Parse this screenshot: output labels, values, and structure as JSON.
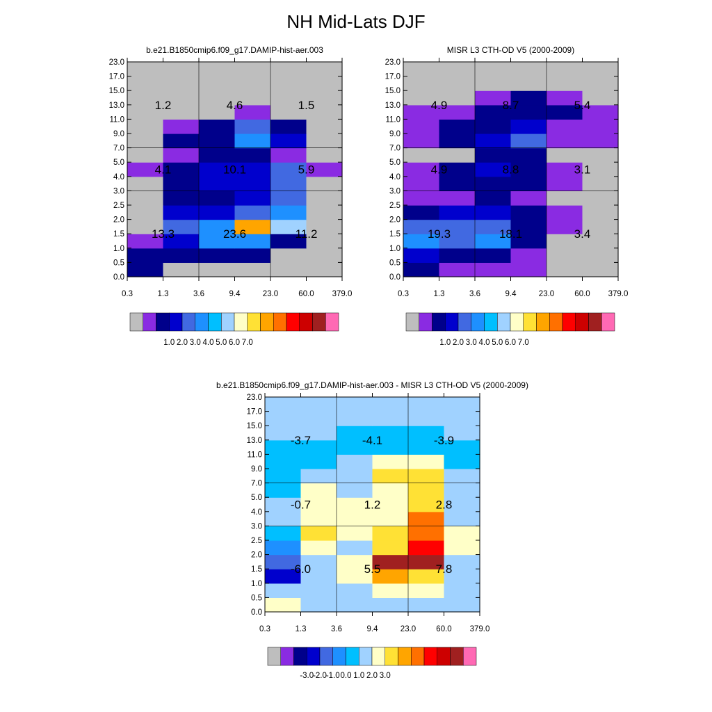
{
  "title": "NH Mid-Lats DJF",
  "palette": {
    "missing": "#bebebe",
    "colors": [
      "#8a2be2",
      "#00008b",
      "#0000cd",
      "#4169e1",
      "#1e90ff",
      "#00bfff",
      "#a0d2ff",
      "#ffffc8",
      "#ffe135",
      "#ffa500",
      "#ff7000",
      "#ff0000",
      "#cd0000",
      "#a02020",
      "#ff69b4"
    ]
  },
  "chart_data": [
    {
      "type": "heatmap",
      "title": "b.e21.B1850cmip6.f09_g17.DAMIP-hist-aer.003",
      "x_edges": [
        "0.3",
        "1.3",
        "3.6",
        "9.4",
        "23.0",
        "60.0",
        "379.0"
      ],
      "y_edges": [
        "0.0",
        "0.5",
        "1.0",
        "1.5",
        "2.0",
        "2.5",
        "3.0",
        "4.0",
        "5.0",
        "7.0",
        "9.0",
        "11.0",
        "13.0",
        "15.0",
        "17.0",
        "23.0"
      ],
      "cells": [
        [
          1,
          -1,
          -1,
          -1,
          -1,
          -1
        ],
        [
          1,
          1,
          1,
          1,
          -1,
          -1
        ],
        [
          0,
          2,
          4,
          4,
          1,
          -1
        ],
        [
          -1,
          3,
          4,
          9,
          6,
          -1
        ],
        [
          -1,
          2,
          2,
          3,
          4,
          -1
        ],
        [
          -1,
          1,
          1,
          2,
          3,
          -1
        ],
        [
          -1,
          1,
          2,
          2,
          3,
          -1
        ],
        [
          0,
          1,
          2,
          2,
          3,
          0
        ],
        [
          -1,
          0,
          1,
          1,
          0,
          -1
        ],
        [
          -1,
          1,
          1,
          4,
          2,
          -1
        ],
        [
          -1,
          0,
          1,
          3,
          1,
          -1
        ],
        [
          -1,
          -1,
          -1,
          0,
          -1,
          -1
        ],
        [
          -1,
          -1,
          -1,
          -1,
          -1,
          -1
        ],
        [
          -1,
          -1,
          -1,
          -1,
          -1,
          -1
        ],
        [
          -1,
          -1,
          -1,
          -1,
          -1,
          -1
        ]
      ],
      "annotations": [
        {
          "text": "1.2",
          "col": 0,
          "row": 0
        },
        {
          "text": "4.6",
          "col": 1,
          "row": 0
        },
        {
          "text": "1.5",
          "col": 2,
          "row": 0
        },
        {
          "text": "4.1",
          "col": 0,
          "row": 1
        },
        {
          "text": "10.1",
          "col": 1,
          "row": 1
        },
        {
          "text": "5.9",
          "col": 2,
          "row": 1
        },
        {
          "text": "13.3",
          "col": 0,
          "row": 2
        },
        {
          "text": "23.6",
          "col": 1,
          "row": 2
        },
        {
          "text": "11.2",
          "col": 2,
          "row": 2
        }
      ],
      "colorbar_labels": [
        "1.0",
        "2.0",
        "3.0",
        "4.0",
        "5.0",
        "6.0",
        "7.0"
      ]
    },
    {
      "type": "heatmap",
      "title": "MISR L3 CTH-OD V5 (2000-2009)",
      "x_edges": [
        "0.3",
        "1.3",
        "3.6",
        "9.4",
        "23.0",
        "60.0",
        "379.0"
      ],
      "y_edges": [
        "0.0",
        "0.5",
        "1.0",
        "1.5",
        "2.0",
        "2.5",
        "3.0",
        "4.0",
        "5.0",
        "7.0",
        "9.0",
        "11.0",
        "13.0",
        "15.0",
        "17.0",
        "23.0"
      ],
      "cells": [
        [
          1,
          0,
          0,
          0,
          -1,
          -1
        ],
        [
          2,
          1,
          1,
          0,
          -1,
          -1
        ],
        [
          4,
          3,
          4,
          1,
          -1,
          -1
        ],
        [
          3,
          3,
          3,
          1,
          0,
          -1
        ],
        [
          1,
          2,
          2,
          1,
          0,
          -1
        ],
        [
          0,
          0,
          1,
          0,
          -1,
          -1
        ],
        [
          0,
          1,
          1,
          1,
          0,
          -1
        ],
        [
          0,
          1,
          2,
          1,
          0,
          -1
        ],
        [
          -1,
          -1,
          1,
          1,
          -1,
          -1
        ],
        [
          0,
          1,
          2,
          3,
          0,
          0
        ],
        [
          0,
          1,
          1,
          2,
          0,
          0
        ],
        [
          0,
          0,
          1,
          1,
          1,
          0
        ],
        [
          -1,
          -1,
          0,
          1,
          0,
          -1
        ],
        [
          -1,
          -1,
          -1,
          -1,
          -1,
          -1
        ],
        [
          -1,
          -1,
          -1,
          -1,
          -1,
          -1
        ]
      ],
      "annotations": [
        {
          "text": "4.9",
          "col": 0,
          "row": 0
        },
        {
          "text": "8.7",
          "col": 1,
          "row": 0
        },
        {
          "text": "5.4",
          "col": 2,
          "row": 0
        },
        {
          "text": "4.9",
          "col": 0,
          "row": 1
        },
        {
          "text": "8.8",
          "col": 1,
          "row": 1
        },
        {
          "text": "3.1",
          "col": 2,
          "row": 1
        },
        {
          "text": "19.3",
          "col": 0,
          "row": 2
        },
        {
          "text": "18.1",
          "col": 1,
          "row": 2
        },
        {
          "text": "3.4",
          "col": 2,
          "row": 2
        }
      ],
      "colorbar_labels": [
        "1.0",
        "2.0",
        "3.0",
        "4.0",
        "5.0",
        "6.0",
        "7.0"
      ]
    },
    {
      "type": "heatmap",
      "title": "b.e21.B1850cmip6.f09_g17.DAMIP-hist-aer.003 - MISR L3 CTH-OD V5 (2000-2009)",
      "x_edges": [
        "0.3",
        "1.3",
        "3.6",
        "9.4",
        "23.0",
        "60.0",
        "379.0"
      ],
      "y_edges": [
        "0.0",
        "0.5",
        "1.0",
        "1.5",
        "2.0",
        "2.5",
        "3.0",
        "4.0",
        "5.0",
        "7.0",
        "9.0",
        "11.0",
        "13.0",
        "15.0",
        "17.0",
        "23.0"
      ],
      "cells": [
        [
          7,
          6,
          6,
          6,
          6,
          6
        ],
        [
          6,
          6,
          6,
          7,
          7,
          6
        ],
        [
          2,
          6,
          7,
          9,
          8,
          6
        ],
        [
          3,
          6,
          7,
          13,
          13,
          6
        ],
        [
          4,
          7,
          6,
          8,
          11,
          7
        ],
        [
          5,
          8,
          7,
          8,
          10,
          7
        ],
        [
          6,
          7,
          7,
          7,
          10,
          6
        ],
        [
          6,
          7,
          7,
          7,
          8,
          6
        ],
        [
          5,
          7,
          6,
          7,
          8,
          6
        ],
        [
          5,
          6,
          6,
          8,
          8,
          6
        ],
        [
          5,
          5,
          6,
          7,
          7,
          5
        ],
        [
          5,
          5,
          5,
          5,
          5,
          5
        ],
        [
          6,
          6,
          5,
          5,
          5,
          6
        ],
        [
          6,
          6,
          6,
          6,
          6,
          6
        ],
        [
          6,
          6,
          6,
          6,
          6,
          6
        ]
      ],
      "annotations": [
        {
          "text": "-3.7",
          "col": 0,
          "row": 0
        },
        {
          "text": "-4.1",
          "col": 1,
          "row": 0
        },
        {
          "text": "-3.9",
          "col": 2,
          "row": 0
        },
        {
          "text": "-0.7",
          "col": 0,
          "row": 1
        },
        {
          "text": "1.2",
          "col": 1,
          "row": 1
        },
        {
          "text": "2.8",
          "col": 2,
          "row": 1
        },
        {
          "text": "-6.0",
          "col": 0,
          "row": 2
        },
        {
          "text": "5.5",
          "col": 1,
          "row": 2
        },
        {
          "text": "7.8",
          "col": 2,
          "row": 2
        }
      ],
      "colorbar_labels": [
        "-3.0",
        "-2.0",
        "-1.0",
        "0.0",
        "1.0",
        "2.0",
        "3.0"
      ]
    }
  ]
}
